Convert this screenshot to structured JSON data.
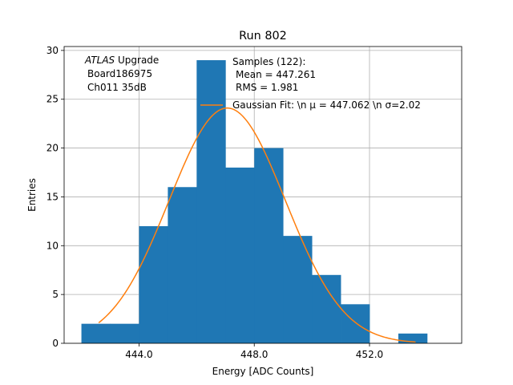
{
  "chart_data": {
    "type": "bar",
    "title": "Run 802",
    "xlabel": "Energy [ADC Counts]",
    "ylabel": "Entries",
    "xlim": [
      441.4,
      455.2
    ],
    "ylim": [
      0,
      30.4
    ],
    "xticks": [
      444.0,
      448.0,
      452.0
    ],
    "xtick_labels": [
      "444.0",
      "448.0",
      "452.0"
    ],
    "yticks": [
      0,
      5,
      10,
      15,
      20,
      25,
      30
    ],
    "ytick_labels": [
      "0",
      "5",
      "10",
      "15",
      "20",
      "25",
      "30"
    ],
    "grid": true,
    "bin_edges": [
      442,
      443,
      444,
      445,
      446,
      447,
      448,
      449,
      450,
      451,
      452,
      453,
      454
    ],
    "counts": [
      2,
      2,
      12,
      16,
      29,
      18,
      20,
      11,
      7,
      4,
      0,
      1
    ],
    "bar_color": "#1f77b4",
    "fit_color": "#ff7f0e",
    "fit": {
      "mu": 447.062,
      "sigma": 2.02,
      "amplitude": 24.1,
      "x_range": [
        442.6,
        453.6
      ]
    },
    "annotation_lines": [
      "ATLAS",
      " Upgrade",
      "Board186975",
      "Ch011 35dB"
    ],
    "legend": {
      "placement": "top-right",
      "samples_lines": [
        "Samples (122):",
        "Mean = 447.261",
        "RMS = 1.981"
      ],
      "fit_label": "Gaussian Fit: \\n μ = 447.062 \\n σ=2.02"
    }
  }
}
